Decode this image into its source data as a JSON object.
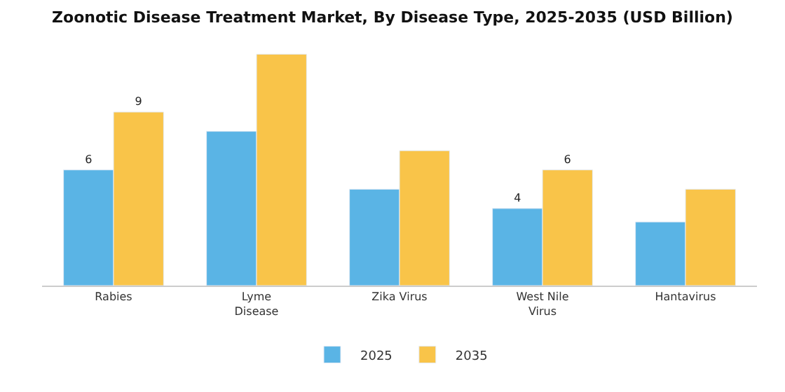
{
  "chart_data": {
    "type": "bar",
    "title": "Zoonotic Disease Treatment Market, By Disease Type, 2025-2035 (USD Billion)",
    "categories": [
      "Rabies",
      "Lyme\nDisease",
      "Zika Virus",
      "West Nile\nVirus",
      "Hantavirus"
    ],
    "series": [
      {
        "name": "2025",
        "color": "#5ab4e5",
        "values": [
          6,
          8,
          5,
          4,
          3.3
        ],
        "value_labels": [
          "6",
          null,
          null,
          "4",
          null
        ]
      },
      {
        "name": "2035",
        "color": "#f9c449",
        "values": [
          9,
          12,
          7,
          6,
          5
        ],
        "value_labels": [
          "9",
          null,
          null,
          "6",
          null
        ]
      }
    ],
    "legend": "bottom",
    "tick_labels": "x"
  }
}
